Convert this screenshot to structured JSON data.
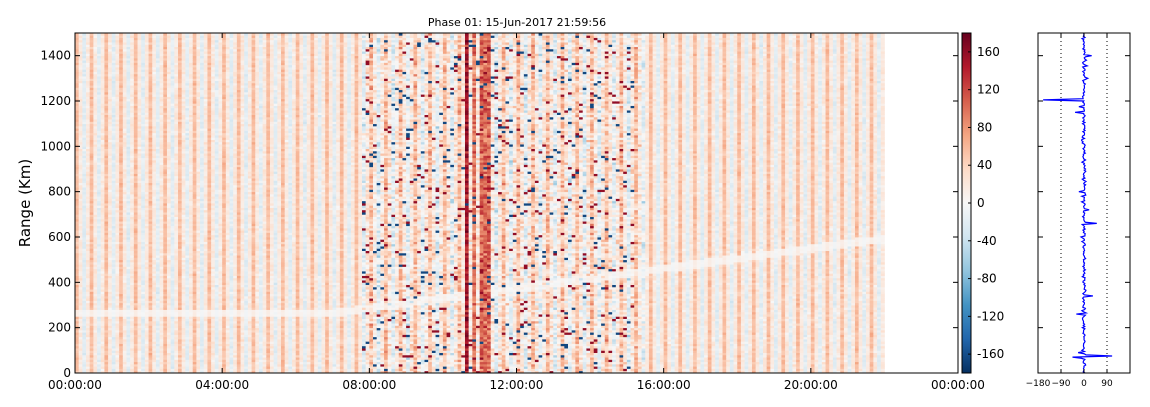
{
  "chart_data": [
    {
      "type": "heatmap",
      "title": "Phase 01: 15-Jun-2017 21:59:56",
      "ylabel": "Range (Km)",
      "xlabel": "",
      "x_range_hours": [
        0,
        24
      ],
      "x_ticks": [
        {
          "hours": 0,
          "label": "00:00:00"
        },
        {
          "hours": 4,
          "label": "04:00:00"
        },
        {
          "hours": 8,
          "label": "08:00:00"
        },
        {
          "hours": 12,
          "label": "12:00:00"
        },
        {
          "hours": 16,
          "label": "16:00:00"
        },
        {
          "hours": 20,
          "label": "20:00:00"
        },
        {
          "hours": 24,
          "label": "00:00:00"
        }
      ],
      "data_end_hours": 22.0,
      "ylim": [
        0,
        1500
      ],
      "y_ticks": [
        "0",
        "200",
        "400",
        "600",
        "800",
        "1000",
        "1200",
        "1400"
      ],
      "y_tick_values": [
        0,
        200,
        400,
        600,
        800,
        1000,
        1200,
        1400
      ],
      "value_range": [
        -180,
        180
      ],
      "strong_phase_columns_hours": [
        10.6,
        11.1
      ],
      "colorbar": {
        "ticks": [
          "-160",
          "-120",
          "-80",
          "-40",
          "0",
          "40",
          "80",
          "120",
          "160"
        ],
        "tick_values": [
          -160,
          -120,
          -80,
          -40,
          0,
          40,
          80,
          120,
          160
        ],
        "colors": [
          "#053061",
          "#2166ac",
          "#4393c3",
          "#92c5de",
          "#d1e5f0",
          "#f7f7f7",
          "#fddbc7",
          "#f4a582",
          "#d6604d",
          "#b2182b",
          "#67001f"
        ]
      }
    },
    {
      "type": "line",
      "title": "",
      "xlim": [
        -180,
        180
      ],
      "x_ticks": [
        "−180",
        "−90",
        "0",
        "90"
      ],
      "x_tick_values": [
        -180,
        -90,
        0,
        90
      ],
      "reference_lines": [
        -90,
        90
      ],
      "ylim": [
        0,
        1500
      ],
      "series_color": "#0000ff",
      "profile_spikes": [
        {
          "range": 1205,
          "phase": -160
        },
        {
          "range": 1175,
          "phase": -20
        },
        {
          "range": 1400,
          "phase": 30
        },
        {
          "range": 1150,
          "phase": -35
        },
        {
          "range": 800,
          "phase": -20
        },
        {
          "range": 720,
          "phase": 20
        },
        {
          "range": 660,
          "phase": 50
        },
        {
          "range": 340,
          "phase": 35
        },
        {
          "range": 260,
          "phase": -30
        },
        {
          "range": 75,
          "phase": 110
        },
        {
          "range": 70,
          "phase": -45
        }
      ]
    }
  ]
}
